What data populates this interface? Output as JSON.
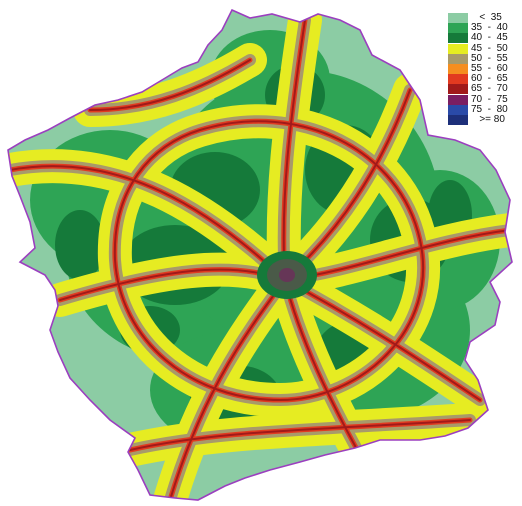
{
  "legend": {
    "items": [
      {
        "label": "   <  35",
        "color": "#8ccca4"
      },
      {
        "label": "35  -  40",
        "color": "#2ea455"
      },
      {
        "label": "40  -  45",
        "color": "#157a3a"
      },
      {
        "label": "45  -  50",
        "color": "#e6ec22"
      },
      {
        "label": "50  -  55",
        "color": "#a89a6a"
      },
      {
        "label": "55  -  60",
        "color": "#f58e20"
      },
      {
        "label": "60  -  65",
        "color": "#e23a20"
      },
      {
        "label": "65  -  70",
        "color": "#a11a1a"
      },
      {
        "label": "70  -  75",
        "color": "#7a1e62"
      },
      {
        "label": "75  -  80",
        "color": "#2a4aa8"
      },
      {
        "label": "   >= 80",
        "color": "#1d2f7a"
      }
    ]
  },
  "map": {
    "boundary_color": "#9b3fbf",
    "road_color": "#a11a1a",
    "center_color": "#4a5a48"
  }
}
